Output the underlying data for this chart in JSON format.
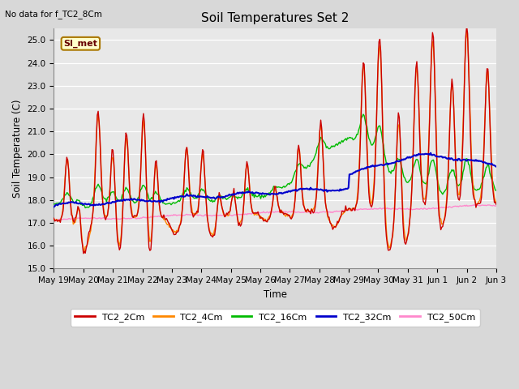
{
  "title": "Soil Temperatures Set 2",
  "top_left_note": "No data for f_TC2_8Cm",
  "ylabel": "Soil Temperature (C)",
  "xlabel": "Time",
  "annotation_box": "SI_met",
  "ylim": [
    15.0,
    25.5
  ],
  "yticks": [
    15.0,
    16.0,
    17.0,
    18.0,
    19.0,
    20.0,
    21.0,
    22.0,
    23.0,
    24.0,
    25.0
  ],
  "fig_bg": "#d8d8d8",
  "axes_bg": "#e8e8e8",
  "series": {
    "TC2_2Cm": {
      "color": "#cc0000",
      "lw": 1.0
    },
    "TC2_4Cm": {
      "color": "#ff8800",
      "lw": 1.0
    },
    "TC2_16Cm": {
      "color": "#00bb00",
      "lw": 1.0
    },
    "TC2_32Cm": {
      "color": "#0000cc",
      "lw": 1.5
    },
    "TC2_50Cm": {
      "color": "#ff88cc",
      "lw": 1.0
    }
  },
  "xtick_labels": [
    "May 19",
    "May 20",
    "May 21",
    "May 22",
    "May 23",
    "May 24",
    "May 25",
    "May 26",
    "May 27",
    "May 28",
    "May 29",
    "May 30",
    "May 31",
    "Jun 1",
    "Jun 2",
    "Jun 3"
  ]
}
